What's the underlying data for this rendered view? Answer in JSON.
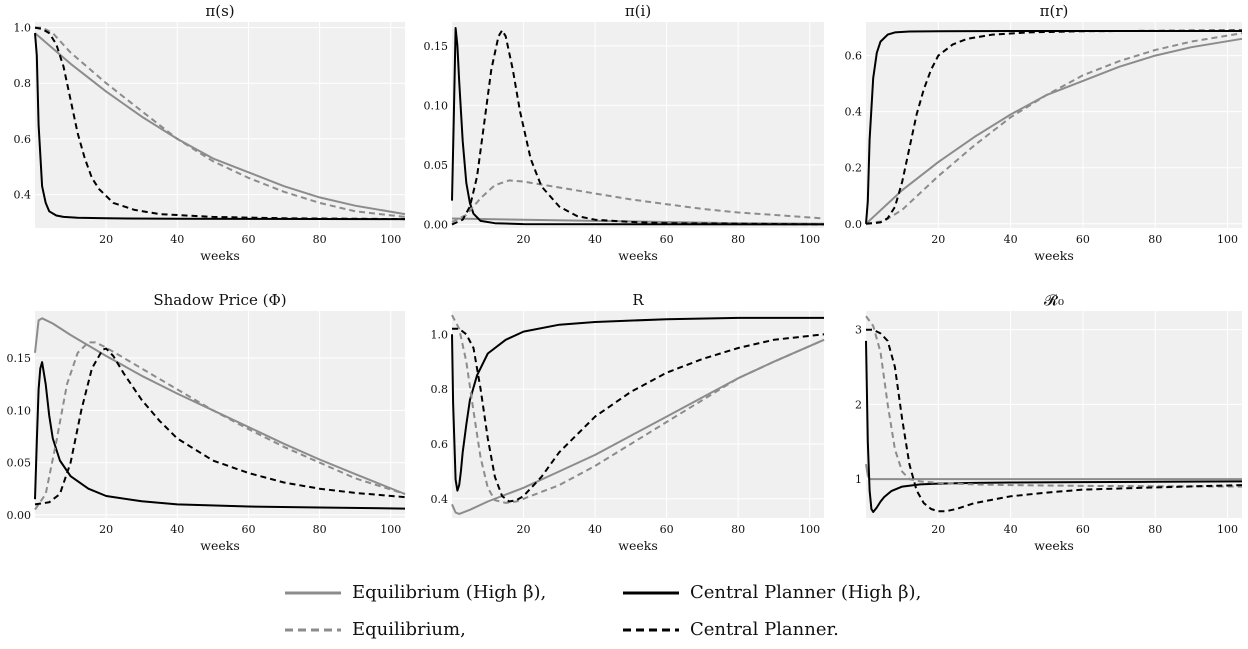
{
  "chart_data": [
    {
      "type": "line",
      "title": "π(s)",
      "xlabel": "weeks",
      "xlim": [
        0,
        104
      ],
      "ylim": [
        0.28,
        1.02
      ],
      "xticks": [
        20,
        40,
        60,
        80,
        100
      ],
      "yticks": [
        {
          "v": 0.4,
          "t": "0.4"
        },
        {
          "v": 0.6,
          "t": "0.6"
        },
        {
          "v": 0.8,
          "t": "0.8"
        },
        {
          "v": 1.0,
          "t": "1.0"
        }
      ],
      "series": [
        {
          "name": "Equilibrium (High β)",
          "style": "eqh",
          "x": [
            0,
            10,
            20,
            30,
            40,
            50,
            60,
            70,
            80,
            90,
            104
          ],
          "y": [
            0.98,
            0.87,
            0.77,
            0.68,
            0.6,
            0.53,
            0.48,
            0.43,
            0.39,
            0.36,
            0.33
          ]
        },
        {
          "name": "Central Planner (High β)",
          "style": "cph",
          "x": [
            0,
            0.5,
            1,
            2,
            3,
            4,
            6,
            8,
            12,
            20,
            40,
            104
          ],
          "y": [
            0.98,
            0.9,
            0.65,
            0.43,
            0.37,
            0.34,
            0.325,
            0.32,
            0.317,
            0.315,
            0.313,
            0.312
          ]
        },
        {
          "name": "Equilibrium",
          "style": "eq",
          "x": [
            0,
            2,
            5,
            10,
            20,
            30,
            40,
            50,
            60,
            70,
            80,
            90,
            104
          ],
          "y": [
            1.0,
            1.0,
            0.98,
            0.91,
            0.8,
            0.7,
            0.6,
            0.52,
            0.46,
            0.41,
            0.37,
            0.34,
            0.32
          ]
        },
        {
          "name": "Central Planner",
          "style": "cp",
          "x": [
            0,
            2,
            4,
            6,
            8,
            10,
            12,
            14,
            16,
            18,
            22,
            28,
            35,
            50,
            70,
            104
          ],
          "y": [
            1.0,
            0.995,
            0.98,
            0.94,
            0.86,
            0.74,
            0.62,
            0.53,
            0.46,
            0.42,
            0.37,
            0.345,
            0.33,
            0.32,
            0.315,
            0.312
          ]
        }
      ]
    },
    {
      "type": "line",
      "title": "π(i)",
      "xlabel": "weeks",
      "xlim": [
        0,
        104
      ],
      "ylim": [
        -0.003,
        0.17
      ],
      "xticks": [
        20,
        40,
        60,
        80,
        100
      ],
      "yticks": [
        {
          "v": 0.0,
          "t": "0.00"
        },
        {
          "v": 0.05,
          "t": "0.05"
        },
        {
          "v": 0.1,
          "t": "0.10"
        },
        {
          "v": 0.15,
          "t": "0.15"
        }
      ],
      "series": [
        {
          "name": "Equilibrium (High β)",
          "style": "eqh",
          "x": [
            0,
            20,
            40,
            60,
            80,
            104
          ],
          "y": [
            0.005,
            0.004,
            0.003,
            0.002,
            0.001,
            0.0005
          ]
        },
        {
          "name": "Central Planner (High β)",
          "style": "cph",
          "x": [
            0,
            0.5,
            1,
            1.5,
            2,
            3,
            4,
            5,
            6,
            8,
            12,
            20,
            104
          ],
          "y": [
            0.02,
            0.09,
            0.165,
            0.15,
            0.12,
            0.07,
            0.035,
            0.018,
            0.009,
            0.003,
            0.001,
            0.0003,
            0.0
          ]
        },
        {
          "name": "Equilibrium",
          "style": "eq",
          "x": [
            0,
            4,
            8,
            12,
            16,
            20,
            30,
            40,
            50,
            60,
            70,
            80,
            90,
            104
          ],
          "y": [
            0.002,
            0.008,
            0.022,
            0.033,
            0.037,
            0.036,
            0.031,
            0.026,
            0.021,
            0.017,
            0.013,
            0.01,
            0.008,
            0.005
          ]
        },
        {
          "name": "Central Planner",
          "style": "cp",
          "x": [
            0,
            3,
            5,
            7,
            9,
            11,
            13,
            14,
            15,
            17,
            19,
            22,
            25,
            30,
            35,
            40,
            50,
            60,
            104
          ],
          "y": [
            0.0,
            0.004,
            0.015,
            0.04,
            0.085,
            0.13,
            0.158,
            0.163,
            0.158,
            0.13,
            0.095,
            0.055,
            0.032,
            0.015,
            0.007,
            0.004,
            0.002,
            0.001,
            0.0
          ]
        }
      ]
    },
    {
      "type": "line",
      "title": "π(r)",
      "xlabel": "weeks",
      "xlim": [
        0,
        104
      ],
      "ylim": [
        -0.015,
        0.72
      ],
      "xticks": [
        20,
        40,
        60,
        80,
        100
      ],
      "yticks": [
        {
          "v": 0.0,
          "t": "0.0"
        },
        {
          "v": 0.2,
          "t": "0.2"
        },
        {
          "v": 0.4,
          "t": "0.4"
        },
        {
          "v": 0.6,
          "t": "0.6"
        }
      ],
      "series": [
        {
          "name": "Equilibrium (High β)",
          "style": "eqh",
          "x": [
            0,
            10,
            20,
            30,
            40,
            50,
            60,
            70,
            80,
            90,
            104
          ],
          "y": [
            0.0,
            0.12,
            0.22,
            0.31,
            0.39,
            0.46,
            0.51,
            0.56,
            0.6,
            0.63,
            0.66
          ]
        },
        {
          "name": "Central Planner (High β)",
          "style": "cph",
          "x": [
            0,
            0.5,
            1,
            2,
            3,
            4,
            6,
            8,
            12,
            20,
            40,
            104
          ],
          "y": [
            0.0,
            0.08,
            0.3,
            0.52,
            0.61,
            0.65,
            0.675,
            0.683,
            0.686,
            0.687,
            0.688,
            0.688
          ]
        },
        {
          "name": "Equilibrium",
          "style": "eq",
          "x": [
            0,
            5,
            10,
            15,
            20,
            30,
            40,
            50,
            60,
            70,
            80,
            90,
            104
          ],
          "y": [
            0.0,
            0.01,
            0.05,
            0.11,
            0.17,
            0.28,
            0.38,
            0.46,
            0.53,
            0.58,
            0.62,
            0.65,
            0.68
          ]
        },
        {
          "name": "Central Planner",
          "style": "cp",
          "x": [
            0,
            4,
            6,
            8,
            10,
            12,
            14,
            16,
            18,
            20,
            24,
            28,
            35,
            45,
            60,
            104
          ],
          "y": [
            0.0,
            0.005,
            0.02,
            0.06,
            0.15,
            0.27,
            0.39,
            0.48,
            0.55,
            0.6,
            0.64,
            0.66,
            0.675,
            0.683,
            0.687,
            0.69
          ]
        }
      ]
    },
    {
      "type": "line",
      "title": "Shadow Price (Φ)",
      "xlabel": "weeks",
      "xlim": [
        0,
        104
      ],
      "ylim": [
        -0.003,
        0.195
      ],
      "xticks": [
        20,
        40,
        60,
        80,
        100
      ],
      "yticks": [
        {
          "v": 0.0,
          "t": "0.00"
        },
        {
          "v": 0.05,
          "t": "0.05"
        },
        {
          "v": 0.1,
          "t": "0.10"
        },
        {
          "v": 0.15,
          "t": "0.15"
        }
      ],
      "series": [
        {
          "name": "Equilibrium (High β)",
          "style": "eqh",
          "x": [
            0,
            1,
            2,
            5,
            10,
            20,
            30,
            40,
            50,
            60,
            70,
            80,
            90,
            104
          ],
          "y": [
            0.155,
            0.186,
            0.188,
            0.183,
            0.172,
            0.152,
            0.133,
            0.116,
            0.1,
            0.084,
            0.068,
            0.053,
            0.039,
            0.02
          ]
        },
        {
          "name": "Central Planner (High β)",
          "style": "cph",
          "x": [
            0,
            0.5,
            1,
            1.5,
            2,
            3,
            4,
            5,
            7,
            10,
            15,
            20,
            30,
            40,
            60,
            80,
            104
          ],
          "y": [
            0.015,
            0.07,
            0.12,
            0.14,
            0.146,
            0.125,
            0.095,
            0.073,
            0.052,
            0.037,
            0.025,
            0.018,
            0.013,
            0.01,
            0.008,
            0.007,
            0.006
          ]
        },
        {
          "name": "Equilibrium",
          "style": "eq",
          "x": [
            0,
            3,
            6,
            9,
            12,
            15,
            17,
            20,
            25,
            30,
            40,
            50,
            60,
            70,
            80,
            90,
            104
          ],
          "y": [
            0.005,
            0.02,
            0.07,
            0.125,
            0.155,
            0.165,
            0.165,
            0.16,
            0.15,
            0.14,
            0.12,
            0.1,
            0.082,
            0.065,
            0.05,
            0.035,
            0.02
          ]
        },
        {
          "name": "Central Planner",
          "style": "cp",
          "x": [
            0,
            4,
            7,
            10,
            13,
            16,
            19,
            20,
            22,
            25,
            30,
            35,
            40,
            50,
            60,
            70,
            80,
            90,
            104
          ],
          "y": [
            0.01,
            0.012,
            0.02,
            0.05,
            0.1,
            0.14,
            0.158,
            0.159,
            0.152,
            0.135,
            0.11,
            0.09,
            0.073,
            0.052,
            0.04,
            0.031,
            0.025,
            0.021,
            0.017
          ]
        }
      ]
    },
    {
      "type": "line",
      "title": "R",
      "xlabel": "weeks",
      "xlim": [
        0,
        104
      ],
      "ylim": [
        0.33,
        1.085
      ],
      "xticks": [
        20,
        40,
        60,
        80,
        100
      ],
      "yticks": [
        {
          "v": 0.4,
          "t": "0.4"
        },
        {
          "v": 0.6,
          "t": "0.6"
        },
        {
          "v": 0.8,
          "t": "0.8"
        },
        {
          "v": 1.0,
          "t": "1.0"
        }
      ],
      "series": [
        {
          "name": "Equilibrium (High β)",
          "style": "eqh",
          "x": [
            0,
            1,
            2,
            5,
            10,
            20,
            30,
            40,
            50,
            60,
            70,
            80,
            90,
            104
          ],
          "y": [
            0.38,
            0.35,
            0.345,
            0.36,
            0.39,
            0.44,
            0.5,
            0.56,
            0.63,
            0.7,
            0.77,
            0.84,
            0.9,
            0.98
          ]
        },
        {
          "name": "Central Planner (High β)",
          "style": "cph",
          "x": [
            0,
            0.3,
            1,
            1.5,
            2,
            2.5,
            3,
            4,
            5,
            7,
            10,
            15,
            20,
            30,
            40,
            60,
            80,
            104
          ],
          "y": [
            1.0,
            0.75,
            0.47,
            0.43,
            0.45,
            0.5,
            0.57,
            0.67,
            0.76,
            0.85,
            0.93,
            0.98,
            1.01,
            1.035,
            1.045,
            1.055,
            1.06,
            1.06
          ]
        },
        {
          "name": "Equilibrium",
          "style": "eq",
          "x": [
            0,
            2,
            4,
            6,
            8,
            10,
            12,
            15,
            18,
            20,
            30,
            40,
            50,
            60,
            70,
            80,
            90,
            104
          ],
          "y": [
            1.07,
            1.02,
            0.9,
            0.72,
            0.55,
            0.44,
            0.395,
            0.385,
            0.39,
            0.4,
            0.45,
            0.52,
            0.6,
            0.68,
            0.76,
            0.84,
            0.9,
            0.98
          ]
        },
        {
          "name": "Central Planner",
          "style": "cp",
          "x": [
            0,
            2,
            4,
            6,
            8,
            10,
            12,
            14,
            16,
            18,
            20,
            25,
            30,
            40,
            50,
            60,
            70,
            80,
            90,
            104
          ],
          "y": [
            1.02,
            1.02,
            1.0,
            0.95,
            0.8,
            0.62,
            0.48,
            0.41,
            0.39,
            0.395,
            0.41,
            0.48,
            0.57,
            0.7,
            0.79,
            0.86,
            0.91,
            0.95,
            0.98,
            1.0
          ]
        }
      ]
    },
    {
      "type": "line",
      "title": "𝓡₀",
      "xlabel": "weeks",
      "xlim": [
        0,
        104
      ],
      "ylim": [
        0.48,
        3.25
      ],
      "xticks": [
        20,
        40,
        60,
        80,
        100
      ],
      "yticks": [
        {
          "v": 1,
          "t": "1"
        },
        {
          "v": 2,
          "t": "2"
        },
        {
          "v": 3,
          "t": "3"
        }
      ],
      "series": [
        {
          "name": "Equilibrium (High β)",
          "style": "eqh",
          "x": [
            0,
            0.5,
            1,
            3,
            10,
            20,
            40,
            60,
            104
          ],
          "y": [
            1.2,
            1.05,
            1.0,
            1.0,
            1.0,
            1.0,
            1.0,
            1.0,
            1.0
          ]
        },
        {
          "name": "Central Planner (High β)",
          "style": "cph",
          "x": [
            0,
            0.5,
            1,
            1.5,
            2,
            3,
            4,
            5,
            7,
            10,
            15,
            20,
            30,
            40,
            60,
            80,
            104
          ],
          "y": [
            2.85,
            1.5,
            0.85,
            0.6,
            0.56,
            0.62,
            0.7,
            0.76,
            0.84,
            0.9,
            0.93,
            0.94,
            0.95,
            0.955,
            0.96,
            0.965,
            0.97
          ]
        },
        {
          "name": "Equilibrium",
          "style": "eq",
          "x": [
            0,
            2,
            4,
            6,
            8,
            10,
            12,
            15,
            20,
            30,
            40,
            60,
            80,
            104
          ],
          "y": [
            3.18,
            3.05,
            2.7,
            2.0,
            1.4,
            1.1,
            1.0,
            0.97,
            0.95,
            0.93,
            0.92,
            0.91,
            0.905,
            0.9
          ]
        },
        {
          "name": "Central Planner",
          "style": "cp",
          "x": [
            0,
            2,
            4,
            6,
            8,
            10,
            12,
            14,
            16,
            18,
            20,
            22,
            25,
            30,
            40,
            50,
            60,
            80,
            104
          ],
          "y": [
            3.0,
            3.0,
            2.95,
            2.85,
            2.5,
            1.8,
            1.2,
            0.85,
            0.68,
            0.6,
            0.57,
            0.57,
            0.6,
            0.68,
            0.77,
            0.82,
            0.86,
            0.89,
            0.92
          ]
        }
      ]
    }
  ],
  "legend": [
    {
      "label": "Equilibrium (High β),",
      "style": "eqh"
    },
    {
      "label": "Central Planner (High β),",
      "style": "cph"
    },
    {
      "label": "Equilibrium,",
      "style": "eq"
    },
    {
      "label": "Central Planner.",
      "style": "cp"
    }
  ],
  "styles": {
    "eqh": {
      "color": "#8c8c8c",
      "dash": ""
    },
    "cph": {
      "color": "#000000",
      "dash": ""
    },
    "eq": {
      "color": "#8c8c8c",
      "dash": "6 4"
    },
    "cp": {
      "color": "#000000",
      "dash": "6 4"
    }
  },
  "colors": {
    "plot_background": "#f0f0f0",
    "grid": "#ffffff"
  }
}
